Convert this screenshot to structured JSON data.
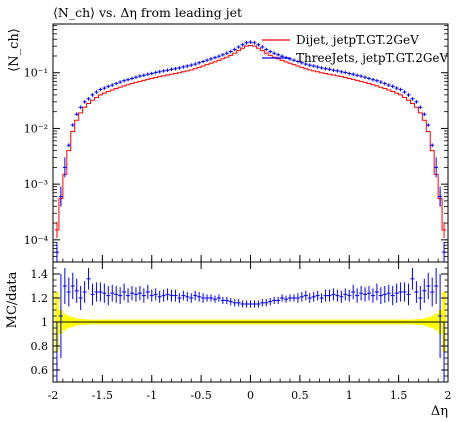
{
  "chart_data": [
    {
      "type": "line",
      "panel": "main",
      "title": "⟨N_ch⟩ vs. Δη from leading jet",
      "ylabel": "⟨N_ch⟩",
      "xlabel": "",
      "xlim": [
        -2,
        2
      ],
      "ylim": [
        4e-05,
        0.75
      ],
      "yscale": "log",
      "y_ticks": [
        {
          "label": "10⁻⁴",
          "value": 0.0001
        },
        {
          "label": "10⁻³",
          "value": 0.001
        },
        {
          "label": "10⁻²",
          "value": 0.01
        },
        {
          "label": "10⁻¹",
          "value": 0.1
        }
      ],
      "grid": false,
      "legend_position": "top-right",
      "series": [
        {
          "name": "Dijet, jetpT.GT.2GeV",
          "color": "#ff0000",
          "style": "step",
          "x": [
            -1.96,
            -1.92,
            -1.88,
            -1.84,
            -1.8,
            -1.76,
            -1.72,
            -1.68,
            -1.64,
            -1.6,
            -1.56,
            -1.52,
            -1.48,
            -1.44,
            -1.4,
            -1.36,
            -1.32,
            -1.28,
            -1.24,
            -1.2,
            -1.16,
            -1.12,
            -1.08,
            -1.04,
            -1.0,
            -0.96,
            -0.92,
            -0.88,
            -0.84,
            -0.8,
            -0.76,
            -0.72,
            -0.68,
            -0.64,
            -0.6,
            -0.56,
            -0.52,
            -0.48,
            -0.44,
            -0.4,
            -0.36,
            -0.32,
            -0.28,
            -0.24,
            -0.2,
            -0.16,
            -0.12,
            -0.08,
            -0.04,
            0.0,
            0.04,
            0.08,
            0.12,
            0.16,
            0.2,
            0.24,
            0.28,
            0.32,
            0.36,
            0.4,
            0.44,
            0.48,
            0.52,
            0.56,
            0.6,
            0.64,
            0.68,
            0.72,
            0.76,
            0.8,
            0.84,
            0.88,
            0.92,
            0.96,
            1.0,
            1.04,
            1.08,
            1.12,
            1.16,
            1.2,
            1.24,
            1.28,
            1.32,
            1.36,
            1.4,
            1.44,
            1.48,
            1.52,
            1.56,
            1.6,
            1.64,
            1.68,
            1.72,
            1.76,
            1.8,
            1.84,
            1.88,
            1.92,
            1.96
          ],
          "values": [
            0.00015,
            0.00055,
            0.0015,
            0.004,
            0.0088,
            0.014,
            0.019,
            0.024,
            0.028,
            0.032,
            0.036,
            0.04,
            0.043,
            0.046,
            0.049,
            0.052,
            0.055,
            0.058,
            0.061,
            0.064,
            0.067,
            0.07,
            0.073,
            0.076,
            0.079,
            0.082,
            0.085,
            0.088,
            0.091,
            0.094,
            0.097,
            0.1,
            0.104,
            0.108,
            0.112,
            0.118,
            0.125,
            0.132,
            0.14,
            0.148,
            0.157,
            0.167,
            0.178,
            0.19,
            0.205,
            0.225,
            0.25,
            0.275,
            0.3,
            0.31,
            0.3,
            0.275,
            0.25,
            0.225,
            0.205,
            0.19,
            0.178,
            0.167,
            0.157,
            0.148,
            0.14,
            0.132,
            0.125,
            0.118,
            0.112,
            0.108,
            0.104,
            0.1,
            0.097,
            0.094,
            0.091,
            0.088,
            0.085,
            0.082,
            0.079,
            0.076,
            0.073,
            0.07,
            0.067,
            0.064,
            0.061,
            0.058,
            0.055,
            0.052,
            0.049,
            0.046,
            0.043,
            0.04,
            0.036,
            0.032,
            0.028,
            0.024,
            0.019,
            0.014,
            0.0088,
            0.004,
            0.0015,
            0.00055,
            0.00015
          ]
        },
        {
          "name": "ThreeJets, jetpT.GT.2GeV",
          "color": "#0000ff",
          "style": "markers",
          "x": [
            -1.96,
            -1.92,
            -1.88,
            -1.84,
            -1.8,
            -1.76,
            -1.72,
            -1.68,
            -1.64,
            -1.6,
            -1.56,
            -1.52,
            -1.48,
            -1.44,
            -1.4,
            -1.36,
            -1.32,
            -1.28,
            -1.24,
            -1.2,
            -1.16,
            -1.12,
            -1.08,
            -1.04,
            -1.0,
            -0.96,
            -0.92,
            -0.88,
            -0.84,
            -0.8,
            -0.76,
            -0.72,
            -0.68,
            -0.64,
            -0.6,
            -0.56,
            -0.52,
            -0.48,
            -0.44,
            -0.4,
            -0.36,
            -0.32,
            -0.28,
            -0.24,
            -0.2,
            -0.16,
            -0.12,
            -0.08,
            -0.04,
            0.0,
            0.04,
            0.08,
            0.12,
            0.16,
            0.2,
            0.24,
            0.28,
            0.32,
            0.36,
            0.4,
            0.44,
            0.48,
            0.52,
            0.56,
            0.6,
            0.64,
            0.68,
            0.72,
            0.76,
            0.8,
            0.84,
            0.88,
            0.92,
            0.96,
            1.0,
            1.04,
            1.08,
            1.12,
            1.16,
            1.2,
            1.24,
            1.28,
            1.32,
            1.36,
            1.4,
            1.44,
            1.48,
            1.52,
            1.56,
            1.6,
            1.64,
            1.68,
            1.72,
            1.76,
            1.8,
            1.84,
            1.88,
            1.92,
            1.96
          ],
          "values": [
            6e-05,
            0.0006,
            0.002,
            0.005,
            0.0115,
            0.018,
            0.024,
            0.03,
            0.034,
            0.04,
            0.045,
            0.05,
            0.053,
            0.057,
            0.06,
            0.064,
            0.068,
            0.072,
            0.075,
            0.079,
            0.083,
            0.087,
            0.09,
            0.094,
            0.097,
            0.101,
            0.104,
            0.108,
            0.111,
            0.115,
            0.118,
            0.122,
            0.127,
            0.132,
            0.137,
            0.143,
            0.151,
            0.159,
            0.168,
            0.177,
            0.187,
            0.198,
            0.21,
            0.224,
            0.24,
            0.262,
            0.29,
            0.318,
            0.345,
            0.355,
            0.345,
            0.318,
            0.29,
            0.262,
            0.24,
            0.224,
            0.21,
            0.198,
            0.187,
            0.177,
            0.168,
            0.159,
            0.151,
            0.143,
            0.137,
            0.132,
            0.127,
            0.122,
            0.118,
            0.115,
            0.111,
            0.108,
            0.104,
            0.101,
            0.097,
            0.094,
            0.09,
            0.087,
            0.083,
            0.079,
            0.075,
            0.072,
            0.068,
            0.064,
            0.06,
            0.057,
            0.053,
            0.05,
            0.045,
            0.04,
            0.034,
            0.03,
            0.024,
            0.018,
            0.0115,
            0.005,
            0.002,
            0.0006,
            6e-05
          ]
        }
      ]
    },
    {
      "type": "scatter",
      "panel": "ratio",
      "ylabel": "MC/data",
      "xlabel": "Δη",
      "xlim": [
        -2,
        2
      ],
      "ylim": [
        0.5,
        1.5
      ],
      "y_ticks": [
        {
          "label": "0.6",
          "value": 0.6
        },
        {
          "label": "0.8",
          "value": 0.8
        },
        {
          "label": "1",
          "value": 1.0
        },
        {
          "label": "1.2",
          "value": 1.2
        },
        {
          "label": "1.4",
          "value": 1.4
        }
      ],
      "x_ticks": [
        {
          "label": "-2",
          "value": -2
        },
        {
          "label": "-1.5",
          "value": -1.5
        },
        {
          "label": "-1",
          "value": -1
        },
        {
          "label": "-0.5",
          "value": -0.5
        },
        {
          "label": "0",
          "value": 0
        },
        {
          "label": "0.5",
          "value": 0.5
        },
        {
          "label": "1",
          "value": 1
        },
        {
          "label": "1.5",
          "value": 1.5
        },
        {
          "label": "2",
          "value": 2
        }
      ],
      "reference_line": 1.0,
      "band_color": "#ffff00",
      "band_half_width": [
        0.25,
        0.1,
        0.07,
        0.05,
        0.04,
        0.03,
        0.025,
        0.025,
        0.02,
        0.02,
        0.02,
        0.02,
        0.02,
        0.02,
        0.02,
        0.02,
        0.02,
        0.02,
        0.02,
        0.02,
        0.02,
        0.02,
        0.02,
        0.02,
        0.02,
        0.02,
        0.02,
        0.02,
        0.02,
        0.02,
        0.02,
        0.02,
        0.02,
        0.02,
        0.02,
        0.02,
        0.02,
        0.02,
        0.02,
        0.02,
        0.02,
        0.02,
        0.02,
        0.02,
        0.02,
        0.02,
        0.02,
        0.02,
        0.02,
        0.02,
        0.02,
        0.02,
        0.02,
        0.02,
        0.02,
        0.02,
        0.02,
        0.02,
        0.02,
        0.02,
        0.02,
        0.02,
        0.02,
        0.02,
        0.02,
        0.02,
        0.02,
        0.02,
        0.02,
        0.02,
        0.02,
        0.02,
        0.02,
        0.02,
        0.02,
        0.02,
        0.02,
        0.02,
        0.02,
        0.02,
        0.02,
        0.02,
        0.02,
        0.02,
        0.02,
        0.02,
        0.02,
        0.02,
        0.02,
        0.02,
        0.02,
        0.025,
        0.025,
        0.03,
        0.04,
        0.05,
        0.07,
        0.1,
        0.25
      ],
      "series": [
        {
          "name": "ThreeJets, jetpT.GT.2GeV",
          "color": "#0000ff",
          "x": [
            -1.96,
            -1.92,
            -1.88,
            -1.84,
            -1.8,
            -1.76,
            -1.72,
            -1.68,
            -1.64,
            -1.6,
            -1.56,
            -1.52,
            -1.48,
            -1.44,
            -1.4,
            -1.36,
            -1.32,
            -1.28,
            -1.24,
            -1.2,
            -1.16,
            -1.12,
            -1.08,
            -1.04,
            -1.0,
            -0.96,
            -0.92,
            -0.88,
            -0.84,
            -0.8,
            -0.76,
            -0.72,
            -0.68,
            -0.64,
            -0.6,
            -0.56,
            -0.52,
            -0.48,
            -0.44,
            -0.4,
            -0.36,
            -0.32,
            -0.28,
            -0.24,
            -0.2,
            -0.16,
            -0.12,
            -0.08,
            -0.04,
            0.0,
            0.04,
            0.08,
            0.12,
            0.16,
            0.2,
            0.24,
            0.28,
            0.32,
            0.36,
            0.4,
            0.44,
            0.48,
            0.52,
            0.56,
            0.6,
            0.64,
            0.68,
            0.72,
            0.76,
            0.8,
            0.84,
            0.88,
            0.92,
            0.96,
            1.0,
            1.04,
            1.08,
            1.12,
            1.16,
            1.2,
            1.24,
            1.28,
            1.32,
            1.36,
            1.4,
            1.44,
            1.48,
            1.52,
            1.56,
            1.6,
            1.64,
            1.68,
            1.72,
            1.76,
            1.8,
            1.84,
            1.88,
            1.92,
            1.96
          ],
          "values": [
            0.45,
            1.05,
            1.3,
            1.25,
            1.3,
            1.26,
            1.2,
            1.25,
            1.36,
            1.23,
            1.25,
            1.25,
            1.24,
            1.22,
            1.24,
            1.23,
            1.22,
            1.25,
            1.22,
            1.24,
            1.23,
            1.24,
            1.22,
            1.25,
            1.22,
            1.23,
            1.21,
            1.22,
            1.23,
            1.22,
            1.22,
            1.2,
            1.22,
            1.21,
            1.2,
            1.22,
            1.21,
            1.2,
            1.2,
            1.2,
            1.19,
            1.2,
            1.18,
            1.18,
            1.17,
            1.16,
            1.16,
            1.15,
            1.15,
            1.15,
            1.15,
            1.15,
            1.16,
            1.16,
            1.17,
            1.18,
            1.18,
            1.2,
            1.19,
            1.2,
            1.2,
            1.2,
            1.21,
            1.22,
            1.2,
            1.21,
            1.22,
            1.2,
            1.22,
            1.22,
            1.23,
            1.22,
            1.21,
            1.23,
            1.22,
            1.25,
            1.22,
            1.24,
            1.23,
            1.24,
            1.22,
            1.25,
            1.22,
            1.23,
            1.24,
            1.22,
            1.24,
            1.25,
            1.25,
            1.23,
            1.36,
            1.25,
            1.2,
            1.26,
            1.3,
            1.25,
            1.3,
            1.05,
            0.45
          ],
          "errors": [
            0.55,
            0.35,
            0.15,
            0.12,
            0.11,
            0.1,
            0.1,
            0.09,
            0.09,
            0.09,
            0.08,
            0.08,
            0.08,
            0.08,
            0.07,
            0.07,
            0.07,
            0.07,
            0.06,
            0.06,
            0.06,
            0.06,
            0.06,
            0.06,
            0.05,
            0.05,
            0.05,
            0.05,
            0.05,
            0.05,
            0.05,
            0.04,
            0.04,
            0.04,
            0.04,
            0.04,
            0.04,
            0.04,
            0.03,
            0.03,
            0.03,
            0.03,
            0.03,
            0.03,
            0.03,
            0.03,
            0.03,
            0.03,
            0.03,
            0.03,
            0.03,
            0.03,
            0.03,
            0.03,
            0.03,
            0.03,
            0.03,
            0.03,
            0.03,
            0.03,
            0.03,
            0.04,
            0.04,
            0.04,
            0.04,
            0.04,
            0.04,
            0.04,
            0.05,
            0.05,
            0.05,
            0.05,
            0.05,
            0.05,
            0.05,
            0.06,
            0.06,
            0.06,
            0.06,
            0.06,
            0.06,
            0.07,
            0.07,
            0.07,
            0.07,
            0.08,
            0.08,
            0.08,
            0.08,
            0.09,
            0.09,
            0.09,
            0.1,
            0.1,
            0.11,
            0.12,
            0.15,
            0.35,
            0.55
          ]
        }
      ]
    }
  ]
}
